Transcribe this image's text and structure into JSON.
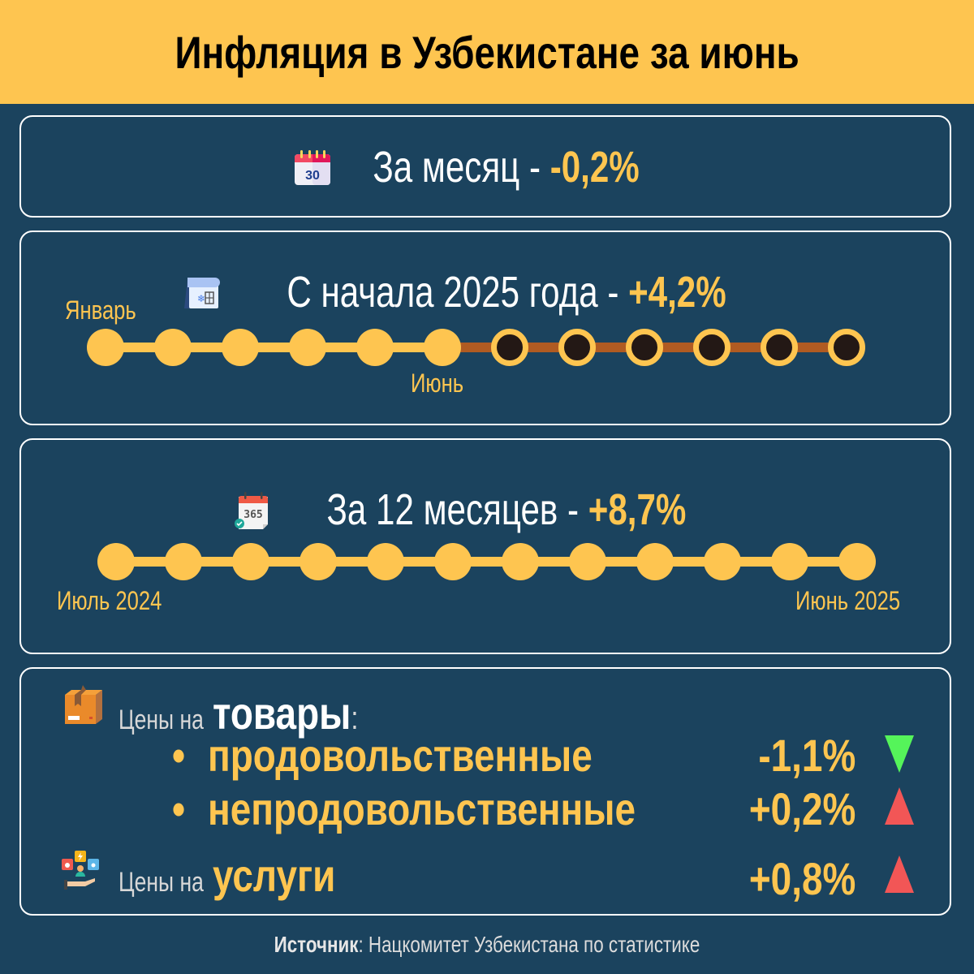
{
  "header": {
    "title": "Инфляция в Узбекистане за июнь"
  },
  "colors": {
    "background": "#1b435e",
    "accent": "#fec550",
    "future_track": "#b05b22",
    "down": "#55f45a",
    "up": "#f25656"
  },
  "monthly": {
    "icon": "calendar-30-icon",
    "label": "За месяц - ",
    "value": "-0,2%"
  },
  "ytd": {
    "icon": "winter-calendar-icon",
    "label": "С начала 2025 года - ",
    "value": "+4,2%",
    "start_label": "Январь",
    "current_label": "Июнь",
    "months_total": 12,
    "months_elapsed": 6
  },
  "yearly": {
    "icon": "calendar-365-icon",
    "label": "За 12 месяцев - ",
    "value": "+8,7%",
    "start_label": "Июль 2024",
    "end_label": "Июнь 2025",
    "months_total": 12
  },
  "prices": {
    "goods": {
      "icon": "box-icon",
      "prefix": "Цены на ",
      "title": "товары",
      "colon": ":",
      "items": [
        {
          "bullet": "•",
          "label": "продовольственные",
          "value": "-1,1%",
          "trend": "down"
        },
        {
          "bullet": "•",
          "label": "непродовольственные",
          "value": "+0,2%",
          "trend": "up"
        }
      ]
    },
    "services": {
      "icon": "services-hand-icon",
      "prefix": "Цены на ",
      "title": "услуги",
      "value": "+0,8%",
      "trend": "up"
    }
  },
  "source": {
    "label": "Источник",
    "colon": ":",
    "text": " Нацкомитет Узбекистана по статистике"
  },
  "chart_data": {
    "type": "table",
    "title": "Инфляция в Узбекистане за июнь",
    "categories": [
      "За месяц",
      "С начала 2025 года",
      "За 12 месяцев",
      "Продовольственные товары",
      "Непродовольственные товары",
      "Услуги"
    ],
    "values": [
      -0.2,
      4.2,
      8.7,
      -1.1,
      0.2,
      0.8
    ],
    "unit": "%"
  }
}
